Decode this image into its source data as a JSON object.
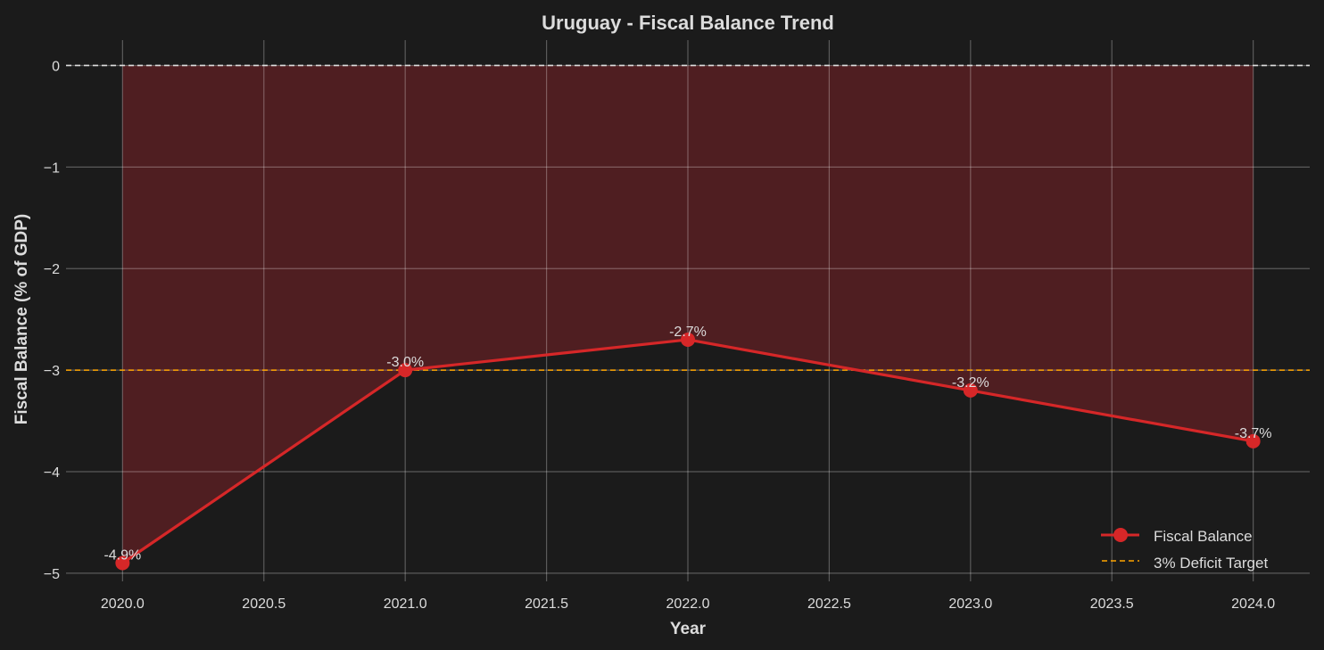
{
  "chart_data": {
    "type": "line",
    "title": "Uruguay - Fiscal Balance Trend",
    "xlabel": "Year",
    "ylabel": "Fiscal Balance (% of GDP)",
    "xlim": [
      2019.8,
      2024.2
    ],
    "ylim": [
      -5.08,
      0.25
    ],
    "xticks": [
      2020.0,
      2020.5,
      2021.0,
      2021.5,
      2022.0,
      2022.5,
      2023.0,
      2023.5,
      2024.0
    ],
    "xtick_labels": [
      "2020.0",
      "2020.5",
      "2021.0",
      "2021.5",
      "2022.0",
      "2022.5",
      "2023.0",
      "2023.5",
      "2024.0"
    ],
    "yticks": [
      0,
      -1,
      -2,
      -3,
      -4,
      -5
    ],
    "ytick_labels": [
      "0",
      "−1",
      "−2",
      "−3",
      "−4",
      "−5"
    ],
    "grid": true,
    "legend_position": "bottom-right",
    "series": [
      {
        "name": "Fiscal Balance",
        "color": "#d62728",
        "x": [
          2020,
          2021,
          2022,
          2023,
          2024
        ],
        "values": [
          -4.9,
          -3.0,
          -2.7,
          -3.2,
          -3.7
        ],
        "labels": [
          "-4.9%",
          "-3.0%",
          "-2.7%",
          "-3.2%",
          "-3.7%"
        ],
        "fill_to": 0,
        "fill_color": "#4f1e21"
      }
    ],
    "reference_lines": [
      {
        "name": "zero",
        "y": 0,
        "color": "#dddddd",
        "style": "dashed"
      },
      {
        "name": "3% Deficit Target",
        "y": -3,
        "color": "#ffa500",
        "style": "dashed"
      }
    ]
  }
}
